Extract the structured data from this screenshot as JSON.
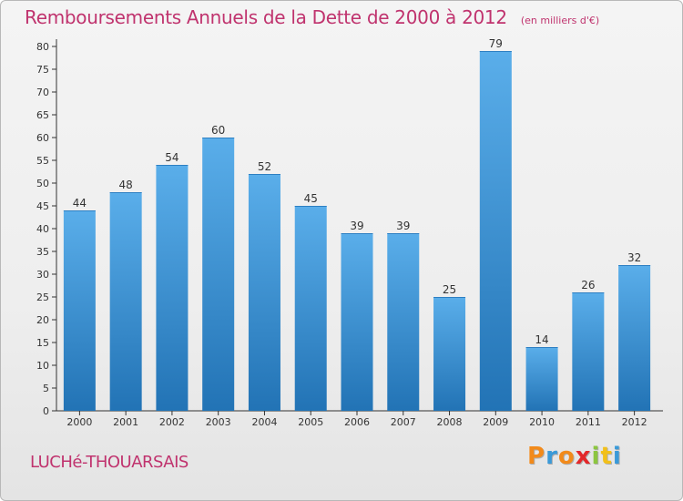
{
  "header": {
    "title": "Remboursements Annuels de la Dette de 2000 à 2012",
    "unit": "(en milliers d'€)"
  },
  "footer": {
    "commune": "LUCHé-THOUARSAIS",
    "logo_letters": [
      "P",
      "r",
      "o",
      "x",
      "i",
      "t",
      "i"
    ],
    "logo_colors": [
      "#f28a1a",
      "#3a9ad8",
      "#f28a1a",
      "#e3282a",
      "#8cc63f",
      "#f2c01a",
      "#3a9ad8"
    ]
  },
  "colors": {
    "bar_top": "#5aaeea",
    "bar_bottom": "#2273b5",
    "title": "#c0336e"
  },
  "chart_data": {
    "type": "bar",
    "title": "Remboursements Annuels de la Dette de 2000 à 2012",
    "subtitle": "(en milliers d'€)",
    "xlabel": "",
    "ylabel": "",
    "categories": [
      "2000",
      "2001",
      "2002",
      "2003",
      "2004",
      "2005",
      "2006",
      "2007",
      "2008",
      "2009",
      "2010",
      "2011",
      "2012"
    ],
    "values": [
      44,
      48,
      54,
      60,
      52,
      45,
      39,
      39,
      25,
      79,
      14,
      26,
      32
    ],
    "ylim": [
      0,
      80
    ],
    "yticks": [
      0,
      5,
      10,
      15,
      20,
      25,
      30,
      35,
      40,
      45,
      50,
      55,
      60,
      65,
      70,
      75,
      80
    ],
    "grid": false,
    "legend": "none"
  }
}
